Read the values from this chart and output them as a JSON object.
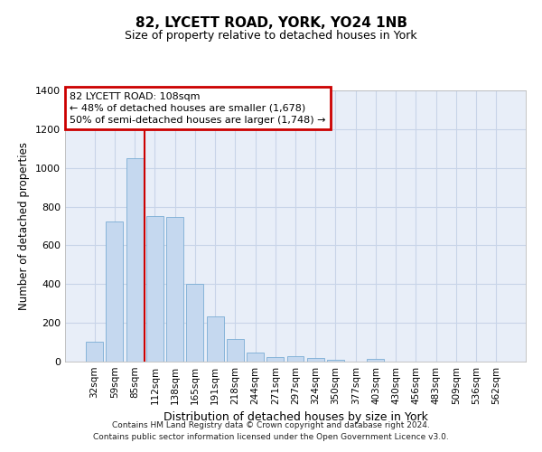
{
  "title": "82, LYCETT ROAD, YORK, YO24 1NB",
  "subtitle": "Size of property relative to detached houses in York",
  "xlabel": "Distribution of detached houses by size in York",
  "ylabel": "Number of detached properties",
  "footer_line1": "Contains HM Land Registry data © Crown copyright and database right 2024.",
  "footer_line2": "Contains public sector information licensed under the Open Government Licence v3.0.",
  "bar_color": "#c5d8ef",
  "bar_edge_color": "#7aadd4",
  "grid_color": "#c8d4e8",
  "background_color": "#e8eef8",
  "annotation_text_line1": "82 LYCETT ROAD: 108sqm",
  "annotation_text_line2": "← 48% of detached houses are smaller (1,678)",
  "annotation_text_line3": "50% of semi-detached houses are larger (1,748) →",
  "annotation_box_color": "#cc0000",
  "property_line_color": "#cc0000",
  "categories": [
    "32sqm",
    "59sqm",
    "85sqm",
    "112sqm",
    "138sqm",
    "165sqm",
    "191sqm",
    "218sqm",
    "244sqm",
    "271sqm",
    "297sqm",
    "324sqm",
    "350sqm",
    "377sqm",
    "403sqm",
    "430sqm",
    "456sqm",
    "483sqm",
    "509sqm",
    "536sqm",
    "562sqm"
  ],
  "bar_heights": [
    105,
    725,
    1050,
    750,
    745,
    400,
    235,
    115,
    45,
    25,
    30,
    20,
    10,
    0,
    15,
    0,
    0,
    0,
    0,
    0,
    0
  ],
  "ylim": [
    0,
    1400
  ],
  "yticks": [
    0,
    200,
    400,
    600,
    800,
    1000,
    1200,
    1400
  ],
  "property_line_x": 2.5
}
